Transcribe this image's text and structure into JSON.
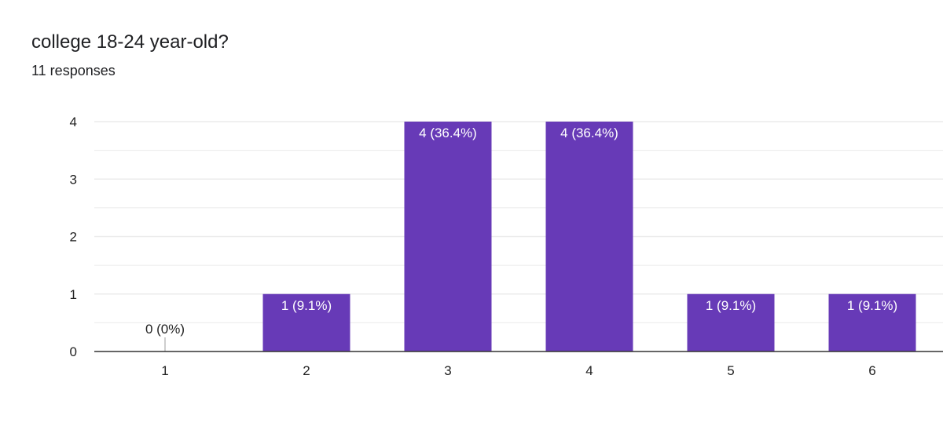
{
  "header": {
    "question": "college 18-24 year-old?",
    "responses": "11 responses"
  },
  "colors": {
    "bar": "#673ab7",
    "bar_label_inside": "#ffffff",
    "bar_label_outside": "#222222",
    "gridline": "#ebebeb",
    "axis": "#333333"
  },
  "chart_data": {
    "type": "bar",
    "title": "college 18-24 year-old?",
    "subtitle": "11 responses",
    "categories": [
      "1",
      "2",
      "3",
      "4",
      "5",
      "6"
    ],
    "values": [
      0,
      1,
      4,
      4,
      1,
      1
    ],
    "data_labels": [
      "0 (0%)",
      "1 (9.1%)",
      "4 (36.4%)",
      "4 (36.4%)",
      "1 (9.1%)",
      "1 (9.1%)"
    ],
    "yticks": [
      0,
      1,
      2,
      3,
      4
    ],
    "ylim": [
      0,
      4
    ],
    "grid": true,
    "legend": "none"
  }
}
